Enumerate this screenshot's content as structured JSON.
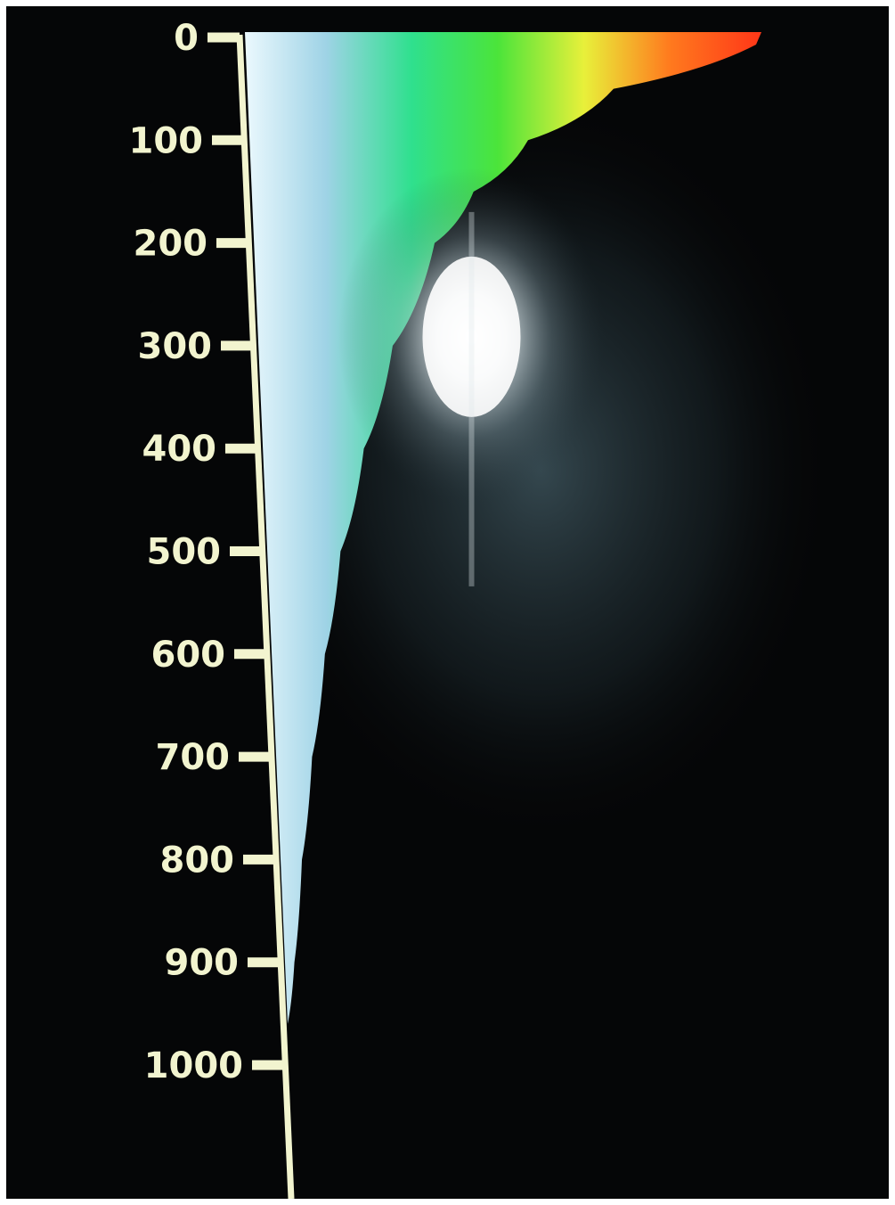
{
  "chart_data": {
    "type": "area",
    "title": "",
    "xlabel": "",
    "ylabel": "",
    "y_axis": {
      "ticks": [
        "0",
        "100",
        "200",
        "300",
        "400",
        "500",
        "600",
        "700",
        "800",
        "900",
        "1000"
      ],
      "ylim": [
        0,
        1000
      ],
      "inverted": true,
      "position": "left",
      "color": "#f2f4cf"
    },
    "x_axis": {
      "shown": false
    },
    "grid": false,
    "legend": "none",
    "series": [
      {
        "points": [
          {
            "y": 0,
            "x": 1.0
          },
          {
            "y": 50,
            "x": 0.72
          },
          {
            "y": 100,
            "x": 0.55
          },
          {
            "y": 150,
            "x": 0.44
          },
          {
            "y": 200,
            "x": 0.36
          },
          {
            "y": 300,
            "x": 0.27
          },
          {
            "y": 400,
            "x": 0.205
          },
          {
            "y": 500,
            "x": 0.15
          },
          {
            "y": 600,
            "x": 0.11
          },
          {
            "y": 700,
            "x": 0.075
          },
          {
            "y": 800,
            "x": 0.045
          },
          {
            "y": 900,
            "x": 0.02
          },
          {
            "y": 960,
            "x": 0.0
          }
        ]
      }
    ],
    "color_scale": [
      "#f0fbff",
      "#9fd3e6",
      "#2fe08e",
      "#4be43a",
      "#e8f03a",
      "#ff7a1e",
      "#ff3a18"
    ],
    "background_color": "#050607",
    "glare": {
      "y": 300,
      "x": 0.5
    }
  }
}
